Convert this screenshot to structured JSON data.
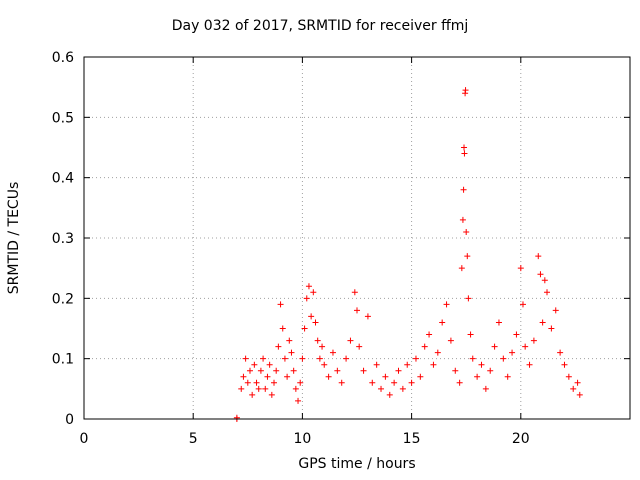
{
  "chart_data": {
    "type": "scatter",
    "title": "Day 032 of 2017, SRMTID for receiver ffmj",
    "xlabel": "GPS time / hours",
    "ylabel": "SRMTID / TECUs",
    "xlim": [
      0,
      25
    ],
    "ylim": [
      0,
      0.6
    ],
    "xticks": [
      0,
      5,
      10,
      15,
      20
    ],
    "yticks": [
      0,
      0.1,
      0.2,
      0.3,
      0.4,
      0.5,
      0.6
    ],
    "xtick_labels": [
      "0",
      "5",
      "10",
      "15",
      "20"
    ],
    "ytick_labels": [
      "0",
      "0.1",
      "0.2",
      "0.3",
      "0.4",
      "0.5",
      "0.6"
    ],
    "grid": true,
    "marker": "+",
    "color": "#ff0000",
    "series": [
      {
        "name": "SRMTID",
        "points": [
          [
            7.0,
            0.0
          ],
          [
            7.0,
            0.002
          ],
          [
            7.2,
            0.05
          ],
          [
            7.3,
            0.07
          ],
          [
            7.4,
            0.1
          ],
          [
            7.5,
            0.06
          ],
          [
            7.6,
            0.08
          ],
          [
            7.7,
            0.04
          ],
          [
            7.8,
            0.09
          ],
          [
            7.9,
            0.06
          ],
          [
            8.0,
            0.05
          ],
          [
            8.1,
            0.08
          ],
          [
            8.2,
            0.1
          ],
          [
            8.3,
            0.05
          ],
          [
            8.4,
            0.07
          ],
          [
            8.5,
            0.09
          ],
          [
            8.6,
            0.04
          ],
          [
            8.7,
            0.06
          ],
          [
            8.8,
            0.08
          ],
          [
            8.9,
            0.12
          ],
          [
            9.0,
            0.19
          ],
          [
            9.1,
            0.15
          ],
          [
            9.2,
            0.1
          ],
          [
            9.3,
            0.07
          ],
          [
            9.4,
            0.13
          ],
          [
            9.5,
            0.11
          ],
          [
            9.6,
            0.08
          ],
          [
            9.7,
            0.05
          ],
          [
            9.8,
            0.03
          ],
          [
            9.9,
            0.06
          ],
          [
            10.0,
            0.1
          ],
          [
            10.1,
            0.15
          ],
          [
            10.2,
            0.2
          ],
          [
            10.3,
            0.22
          ],
          [
            10.4,
            0.17
          ],
          [
            10.5,
            0.21
          ],
          [
            10.6,
            0.16
          ],
          [
            10.7,
            0.13
          ],
          [
            10.8,
            0.1
          ],
          [
            10.9,
            0.12
          ],
          [
            11.0,
            0.09
          ],
          [
            11.2,
            0.07
          ],
          [
            11.4,
            0.11
          ],
          [
            11.6,
            0.08
          ],
          [
            11.8,
            0.06
          ],
          [
            12.0,
            0.1
          ],
          [
            12.2,
            0.13
          ],
          [
            12.4,
            0.21
          ],
          [
            12.5,
            0.18
          ],
          [
            12.6,
            0.12
          ],
          [
            12.8,
            0.08
          ],
          [
            13.0,
            0.17
          ],
          [
            13.2,
            0.06
          ],
          [
            13.4,
            0.09
          ],
          [
            13.6,
            0.05
          ],
          [
            13.8,
            0.07
          ],
          [
            14.0,
            0.04
          ],
          [
            14.2,
            0.06
          ],
          [
            14.4,
            0.08
          ],
          [
            14.6,
            0.05
          ],
          [
            14.8,
            0.09
          ],
          [
            15.0,
            0.06
          ],
          [
            15.2,
            0.1
          ],
          [
            15.4,
            0.07
          ],
          [
            15.6,
            0.12
          ],
          [
            15.8,
            0.14
          ],
          [
            16.0,
            0.09
          ],
          [
            16.2,
            0.11
          ],
          [
            16.4,
            0.16
          ],
          [
            16.6,
            0.19
          ],
          [
            16.8,
            0.13
          ],
          [
            17.0,
            0.08
          ],
          [
            17.2,
            0.06
          ],
          [
            17.3,
            0.25
          ],
          [
            17.35,
            0.33
          ],
          [
            17.38,
            0.38
          ],
          [
            17.4,
            0.45
          ],
          [
            17.42,
            0.44
          ],
          [
            17.45,
            0.54
          ],
          [
            17.47,
            0.545
          ],
          [
            17.5,
            0.31
          ],
          [
            17.55,
            0.27
          ],
          [
            17.6,
            0.2
          ],
          [
            17.7,
            0.14
          ],
          [
            17.8,
            0.1
          ],
          [
            18.0,
            0.07
          ],
          [
            18.2,
            0.09
          ],
          [
            18.4,
            0.05
          ],
          [
            18.6,
            0.08
          ],
          [
            18.8,
            0.12
          ],
          [
            19.0,
            0.16
          ],
          [
            19.2,
            0.1
          ],
          [
            19.4,
            0.07
          ],
          [
            19.6,
            0.11
          ],
          [
            19.8,
            0.14
          ],
          [
            20.0,
            0.25
          ],
          [
            20.1,
            0.19
          ],
          [
            20.2,
            0.12
          ],
          [
            20.4,
            0.09
          ],
          [
            20.6,
            0.13
          ],
          [
            20.8,
            0.27
          ],
          [
            20.9,
            0.24
          ],
          [
            21.0,
            0.16
          ],
          [
            21.1,
            0.23
          ],
          [
            21.2,
            0.21
          ],
          [
            21.4,
            0.15
          ],
          [
            21.6,
            0.18
          ],
          [
            21.8,
            0.11
          ],
          [
            22.0,
            0.09
          ],
          [
            22.2,
            0.07
          ],
          [
            22.4,
            0.05
          ],
          [
            22.6,
            0.06
          ],
          [
            22.7,
            0.04
          ]
        ]
      }
    ]
  }
}
